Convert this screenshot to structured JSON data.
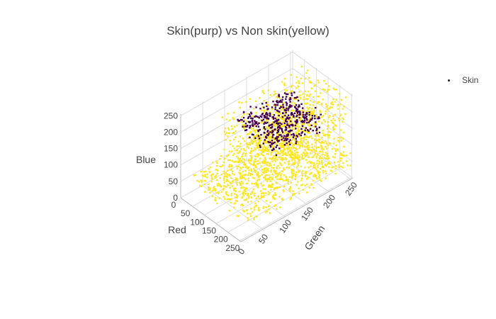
{
  "chart_data": {
    "type": "scatter",
    "dimensions": 3,
    "title": "Skin(purp) vs Non skin(yellow)",
    "axes": {
      "x": {
        "label": "Red",
        "range": [
          0,
          255
        ],
        "ticks": [
          "0",
          "50",
          "100",
          "150",
          "200",
          "250"
        ]
      },
      "y": {
        "label": "Green",
        "range": [
          0,
          255
        ],
        "ticks": [
          "0",
          "50",
          "100",
          "150",
          "200",
          "250"
        ]
      },
      "z": {
        "label": "Blue",
        "range": [
          0,
          255
        ],
        "ticks": [
          "0",
          "50",
          "100",
          "150",
          "200",
          "250"
        ]
      }
    },
    "grid": true,
    "legend": {
      "placement": "top-right",
      "entries": [
        "Skin"
      ]
    },
    "series": [
      {
        "name": "Skin",
        "colors": {
          "non_skin": "#fde725",
          "skin": "#440154"
        },
        "clusters": [
          {
            "class": "non_skin",
            "red": [
              10,
              250
            ],
            "green": [
              20,
              255
            ],
            "blue": [
              20,
              80
            ],
            "count": 900
          },
          {
            "class": "non_skin",
            "red": [
              60,
              255
            ],
            "green": [
              60,
              255
            ],
            "blue": [
              90,
              250
            ],
            "count": 900
          },
          {
            "class": "skin",
            "red": [
              70,
              230
            ],
            "green": [
              90,
              200
            ],
            "blue": [
              170,
              230
            ],
            "count": 420
          }
        ]
      }
    ]
  }
}
